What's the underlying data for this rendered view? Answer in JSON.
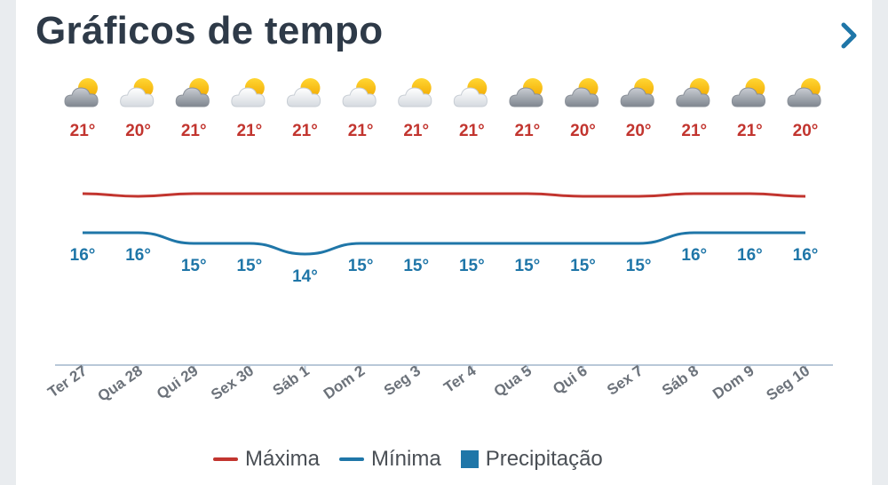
{
  "header": {
    "title": "Gráficos de tempo"
  },
  "legend": {
    "max_label": "Máxima",
    "min_label": "Mínima",
    "precip_label": "Precipitação"
  },
  "colors": {
    "max": "#c2352f",
    "min": "#1f76a8",
    "precip": "#1f76a8",
    "axis": "#b9c8d8",
    "tick_label": "#6c727a",
    "title": "#2e3a48",
    "chevron": "#1f76a8"
  },
  "chart_data": {
    "type": "line",
    "categories": [
      "Ter 27",
      "Qua 28",
      "Qui 29",
      "Sex 30",
      "Sáb 1",
      "Dom 2",
      "Seg 3",
      "Ter 4",
      "Qua 5",
      "Qui 6",
      "Sex 7",
      "Sáb 8",
      "Dom 9",
      "Seg 10"
    ],
    "icons": [
      "partly-cloudy-dark-icon",
      "partly-cloudy-light-icon",
      "partly-cloudy-dark-icon",
      "partly-cloudy-light-icon",
      "partly-cloudy-light-icon",
      "partly-cloudy-light-icon",
      "partly-cloudy-light-icon",
      "partly-cloudy-light-icon",
      "partly-cloudy-dark-icon",
      "partly-cloudy-dark-icon",
      "partly-cloudy-dark-icon",
      "partly-cloudy-dark-icon",
      "partly-cloudy-dark-icon",
      "partly-cloudy-dark-icon"
    ],
    "series": [
      {
        "name": "Máxima",
        "values": [
          21,
          20,
          21,
          21,
          21,
          21,
          21,
          21,
          21,
          20,
          20,
          21,
          21,
          20
        ],
        "labels": [
          "21°",
          "20°",
          "21°",
          "21°",
          "21°",
          "21°",
          "21°",
          "21°",
          "21°",
          "20°",
          "20°",
          "21°",
          "21°",
          "20°"
        ]
      },
      {
        "name": "Mínima",
        "values": [
          16,
          16,
          15,
          15,
          14,
          15,
          15,
          15,
          15,
          15,
          15,
          16,
          16,
          16
        ],
        "labels": [
          "16°",
          "16°",
          "15°",
          "15°",
          "14°",
          "15°",
          "15°",
          "15°",
          "15°",
          "15°",
          "15°",
          "16°",
          "16°",
          "16°"
        ]
      }
    ],
    "legend_position": "bottom",
    "grid": false
  }
}
